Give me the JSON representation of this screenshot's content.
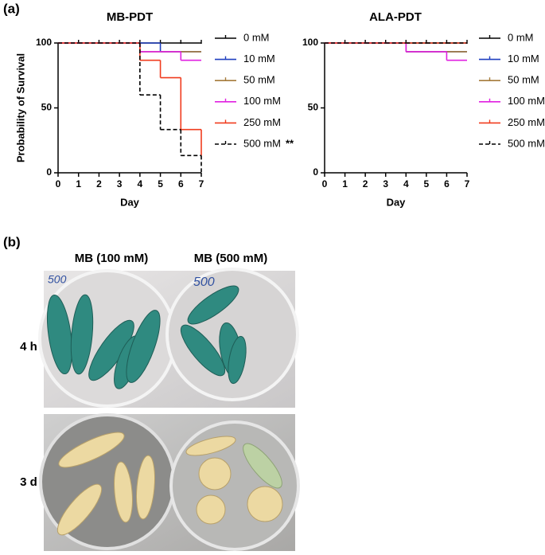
{
  "panel_labels": [
    "(a)",
    "(b)"
  ],
  "chart_data": [
    {
      "type": "step",
      "title": "MB-PDT",
      "x_label": "Day",
      "y_label": "Probability of Survival",
      "x": [
        0,
        1,
        2,
        3,
        4,
        5,
        6,
        7
      ],
      "xlim": [
        0,
        7
      ],
      "xticks": [
        0,
        1,
        2,
        3,
        4,
        5,
        6,
        7
      ],
      "ylim": [
        0,
        100
      ],
      "yticks": [
        0,
        50,
        100
      ],
      "series": [
        {
          "name": "0 mM",
          "color": "#000000",
          "values": [
            100,
            100,
            100,
            100,
            100,
            100,
            100,
            100
          ]
        },
        {
          "name": "10 mM",
          "color": "#1f3fbf",
          "values": [
            100,
            100,
            100,
            100,
            100,
            93.3,
            93.3,
            93.3
          ]
        },
        {
          "name": "50 mM",
          "color": "#a57a3a",
          "values": [
            100,
            100,
            100,
            100,
            93.3,
            93.3,
            93.3,
            93.3
          ]
        },
        {
          "name": "100 mM",
          "color": "#e020e0",
          "values": [
            100,
            100,
            100,
            100,
            93.3,
            93.3,
            86.7,
            86.7
          ]
        },
        {
          "name": "250 mM",
          "color": "#f03c1e",
          "values": [
            100,
            100,
            100,
            100,
            86.7,
            73.3,
            33.3,
            13.3
          ]
        },
        {
          "name": "500 mM",
          "color": "#000000",
          "dashed": true,
          "values": [
            100,
            100,
            100,
            100,
            60,
            33.3,
            13.3,
            0
          ]
        }
      ],
      "annotation": "**"
    },
    {
      "type": "step",
      "title": "ALA-PDT",
      "x_label": "Day",
      "x": [
        0,
        1,
        2,
        3,
        4,
        5,
        6,
        7
      ],
      "xlim": [
        0,
        7
      ],
      "xticks": [
        0,
        1,
        2,
        3,
        4,
        5,
        6,
        7
      ],
      "ylim": [
        0,
        100
      ],
      "yticks": [
        0,
        50,
        100
      ],
      "series": [
        {
          "name": "0 mM",
          "color": "#000000",
          "values": [
            100,
            100,
            100,
            100,
            100,
            100,
            100,
            100
          ]
        },
        {
          "name": "10 mM",
          "color": "#1f3fbf",
          "values": [
            100,
            100,
            100,
            100,
            93.3,
            93.3,
            93.3,
            93.3
          ]
        },
        {
          "name": "50 mM",
          "color": "#a57a3a",
          "values": [
            100,
            100,
            100,
            100,
            93.3,
            93.3,
            93.3,
            93.3
          ]
        },
        {
          "name": "100 mM",
          "color": "#e020e0",
          "values": [
            100,
            100,
            100,
            100,
            93.3,
            93.3,
            86.7,
            86.7
          ]
        },
        {
          "name": "250 mM",
          "color": "#f03c1e",
          "values": [
            100,
            100,
            100,
            100,
            100,
            100,
            100,
            100
          ]
        },
        {
          "name": "500 mM",
          "color": "#000000",
          "dashed": true,
          "values": [
            100,
            100,
            100,
            100,
            100,
            100,
            100,
            100
          ]
        }
      ]
    }
  ],
  "photos": {
    "column_labels": [
      "MB (100 mM)",
      "MB (500 mM)"
    ],
    "row_labels": [
      "4 h",
      "3 d"
    ],
    "dish_notes": [
      "500",
      "500"
    ]
  }
}
